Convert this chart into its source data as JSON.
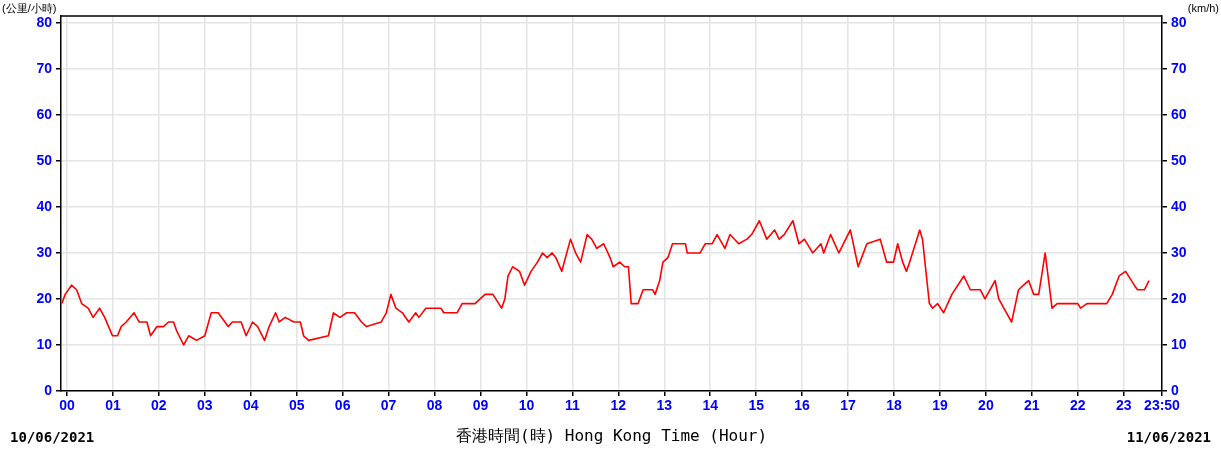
{
  "chart_data": {
    "type": "line",
    "ylabel": "(公里/小時)",
    "y2label": "(km/h)",
    "xlabel": "香港時間(時) Hong Kong Time (Hour)",
    "annotations": [
      "10/06/2021",
      "11/06/2021"
    ],
    "xlim": [
      -0.13,
      23.833
    ],
    "xticks": [
      {
        "value": 0,
        "label": "00"
      },
      {
        "value": 1,
        "label": "01"
      },
      {
        "value": 2,
        "label": "02"
      },
      {
        "value": 3,
        "label": "03"
      },
      {
        "value": 4,
        "label": "04"
      },
      {
        "value": 5,
        "label": "05"
      },
      {
        "value": 6,
        "label": "06"
      },
      {
        "value": 7,
        "label": "07"
      },
      {
        "value": 8,
        "label": "08"
      },
      {
        "value": 9,
        "label": "09"
      },
      10,
      11,
      12,
      13,
      14,
      15,
      16,
      17,
      18,
      19,
      20,
      21,
      22,
      23,
      {
        "value": 23.833,
        "label": "23:50"
      }
    ],
    "ylim": [
      0,
      81.5
    ],
    "yticks": [
      0,
      10,
      20,
      30,
      40,
      50,
      60,
      70,
      80
    ],
    "y2lim": [
      0,
      81.5
    ],
    "y2ticks": [
      0,
      10,
      20,
      30,
      40,
      50,
      60,
      70,
      80
    ],
    "grid": true,
    "legend": false,
    "marker": "none",
    "line_style": "solid",
    "series": [
      {
        "color": "#ff0000",
        "x": [
          -0.11,
          -0.04,
          0.1,
          0.21,
          0.32,
          0.46,
          0.57,
          0.71,
          0.82,
          0.99,
          1.1,
          1.18,
          1.29,
          1.46,
          1.57,
          1.74,
          1.82,
          1.96,
          2.1,
          2.21,
          2.32,
          2.39,
          2.54,
          2.65,
          2.82,
          3.0,
          3.14,
          3.29,
          3.51,
          3.6,
          3.79,
          3.9,
          4.04,
          4.15,
          4.3,
          4.4,
          4.54,
          4.62,
          4.75,
          4.94,
          5.08,
          5.15,
          5.26,
          5.69,
          5.8,
          5.94,
          6.09,
          6.26,
          6.41,
          6.52,
          6.84,
          6.95,
          7.05,
          7.16,
          7.3,
          7.44,
          7.59,
          7.66,
          7.81,
          8.14,
          8.2,
          8.49,
          8.6,
          8.88,
          9.1,
          9.27,
          9.46,
          9.53,
          9.6,
          9.7,
          9.85,
          9.96,
          10.1,
          10.24,
          10.35,
          10.45,
          10.56,
          10.64,
          10.77,
          10.85,
          10.96,
          11.07,
          11.18,
          11.32,
          11.42,
          11.53,
          11.68,
          11.82,
          11.89,
          12.03,
          12.14,
          12.22,
          12.28,
          12.43,
          12.54,
          12.75,
          12.8,
          12.9,
          12.97,
          13.08,
          13.18,
          13.46,
          13.5,
          13.78,
          13.89,
          14.04,
          14.15,
          14.32,
          14.43,
          14.62,
          14.8,
          14.9,
          15.07,
          15.23,
          15.4,
          15.5,
          15.61,
          15.8,
          15.93,
          16.05,
          16.23,
          16.41,
          16.47,
          16.62,
          16.8,
          17.05,
          17.22,
          17.41,
          17.7,
          17.84,
          17.99,
          18.08,
          18.19,
          18.27,
          18.34,
          18.56,
          18.62,
          18.77,
          18.84,
          18.95,
          19.08,
          19.26,
          19.52,
          19.66,
          19.88,
          19.98,
          20.2,
          20.28,
          20.39,
          20.56,
          20.71,
          20.82,
          20.93,
          21.04,
          21.15,
          21.29,
          21.44,
          21.55,
          22.0,
          22.06,
          22.2,
          22.63,
          22.75,
          22.9,
          23.04,
          23.23,
          23.3,
          23.45,
          23.55
        ],
        "values": [
          19,
          21,
          23,
          22,
          19,
          18,
          16,
          18,
          16,
          12,
          12,
          14,
          15,
          17,
          15,
          15,
          12,
          14,
          14,
          15,
          15,
          13,
          10,
          12,
          11,
          12,
          17,
          17,
          14,
          15,
          15,
          12,
          15,
          14,
          11,
          14,
          17,
          15,
          16,
          15,
          15,
          12,
          11,
          12,
          17,
          16,
          17,
          17,
          15,
          14,
          15,
          17,
          21,
          18,
          17,
          15,
          17,
          16,
          18,
          18,
          17,
          17,
          19,
          19,
          21,
          21,
          18,
          20,
          25,
          27,
          26,
          23,
          26,
          28,
          30,
          29,
          30,
          29,
          26,
          29,
          33,
          30,
          28,
          34,
          33,
          31,
          32,
          29,
          27,
          28,
          27,
          27,
          19,
          19,
          22,
          22,
          21,
          24,
          28,
          29,
          32,
          32,
          30,
          30,
          32,
          32,
          34,
          31,
          34,
          32,
          33,
          34,
          37,
          33,
          35,
          33,
          34,
          37,
          32,
          33,
          30,
          32,
          30,
          34,
          30,
          35,
          27,
          32,
          33,
          28,
          28,
          32,
          28,
          26,
          28,
          35,
          33,
          19,
          18,
          19,
          17,
          21,
          25,
          22,
          22,
          20,
          24,
          20,
          18,
          15,
          22,
          23,
          24,
          21,
          21,
          30,
          18,
          19,
          19,
          18,
          19,
          19,
          21,
          25,
          26,
          23,
          22,
          22,
          24
        ]
      }
    ]
  }
}
